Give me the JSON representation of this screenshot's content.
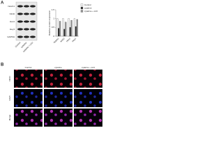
{
  "panel_a_label": "A",
  "blot": {
    "proteins": [
      "Notch1",
      "NICD",
      "Hes1",
      "Hey1",
      "GAPDH"
    ],
    "lanes": [
      "Control",
      "cytarine",
      "cytarine + LiCl"
    ]
  },
  "chart_data": {
    "type": "bar",
    "y_label": "Relative protein expression",
    "categories": [
      "Notch1",
      "NICD",
      "Hes1",
      "Hey1"
    ],
    "series": [
      {
        "name": "Control",
        "color": "#ffffff",
        "values": [
          1,
          1,
          1,
          1
        ]
      },
      {
        "name": "cytarine",
        "color": "#333333",
        "values": [
          0.45,
          0.4,
          0.5,
          0.55
        ]
      },
      {
        "name": "cytarine + LiCl",
        "color": "#999999",
        "values": [
          0.85,
          0.8,
          0.9,
          0.95
        ]
      }
    ],
    "ylim": [
      0,
      1.5
    ],
    "yticks": [
      0,
      0.5,
      1,
      1.5
    ]
  },
  "panel_b_label": "B",
  "microscopy": {
    "columns": [
      "Control",
      "cytarine",
      "cytarine + LiCl"
    ],
    "rows": [
      "NICD",
      "DAPI",
      "Merge"
    ]
  }
}
